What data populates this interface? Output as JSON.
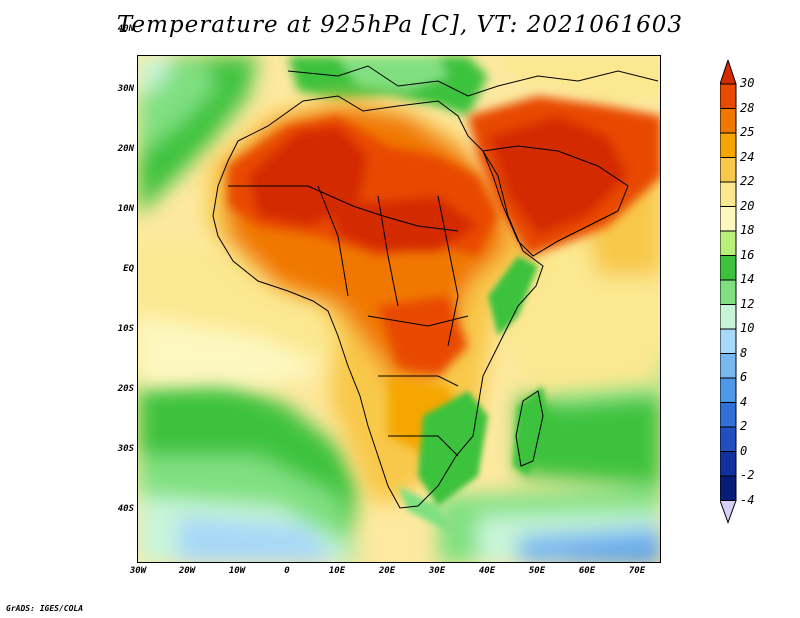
{
  "title": "Temperature at 925hPa [C], VT: 2021061603",
  "credit": "GrADS: IGES/COLA",
  "map": {
    "lat_labels": [
      "40N",
      "30N",
      "20N",
      "10N",
      "EQ",
      "10S",
      "20S",
      "30S",
      "40S"
    ],
    "lon_labels": [
      "30W",
      "20W",
      "10W",
      "0",
      "10E",
      "20E",
      "30E",
      "40E",
      "50E",
      "60E",
      "70E"
    ]
  },
  "colorbar": {
    "levels": [
      "30",
      "28",
      "25",
      "24",
      "22",
      "20",
      "18",
      "16",
      "14",
      "12",
      "10",
      "8",
      "6",
      "4",
      "2",
      "0",
      "-2",
      "-4"
    ],
    "colors": [
      "#d42a00",
      "#e84a00",
      "#f07800",
      "#f5a600",
      "#f8c84a",
      "#fbe890",
      "#fdf8c0",
      "#b8f07a",
      "#3ec23e",
      "#80e080",
      "#c8f5d8",
      "#a8d8f8",
      "#78b8f0",
      "#4e98e8",
      "#3070d8",
      "#2050c0",
      "#1030a0",
      "#081c78",
      "#d8d0f8"
    ]
  }
}
